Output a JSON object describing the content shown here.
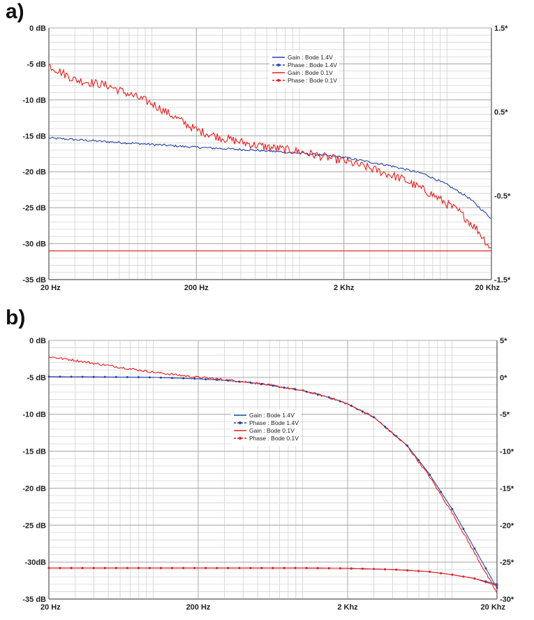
{
  "chart_data": [
    {
      "panel_label": "a)",
      "type": "line",
      "xscale": "log",
      "xlim": [
        20,
        20000
      ],
      "x_ticks": [
        {
          "value": 20,
          "label": "20 Hz"
        },
        {
          "value": 200,
          "label": "200 Hz"
        },
        {
          "value": 2000,
          "label": "2 Khz"
        },
        {
          "value": 20000,
          "label": "20 Khz"
        }
      ],
      "ylim": [
        -35,
        0
      ],
      "y_ticks": [
        {
          "value": 0,
          "label": "0 dB"
        },
        {
          "value": -5,
          "label": "-5 dB"
        },
        {
          "value": -10,
          "label": "-10 dB"
        },
        {
          "value": -15,
          "label": "-15 dB"
        },
        {
          "value": -20,
          "label": "-20 dB"
        },
        {
          "value": -25,
          "label": "-25 dB"
        },
        {
          "value": -30,
          "label": "-30 dB"
        },
        {
          "value": -35,
          "label": "-35 dB"
        }
      ],
      "y2lim": [
        -1.5,
        1.5
      ],
      "y2_ticks": [
        {
          "value": 1.5,
          "label": "1.5*"
        },
        {
          "value": 0.5,
          "label": "0.5*"
        },
        {
          "value": -0.5,
          "label": "-0.5*"
        },
        {
          "value": -1.5,
          "label": "-1.5*"
        }
      ],
      "legend_position": "top-center",
      "series": [
        {
          "name": "Gain : Bode 1.4V",
          "color": "#2244aa",
          "style": "solid",
          "noise": 0.15,
          "x": [
            20,
            40,
            100,
            200,
            500,
            1000,
            2000,
            4000,
            7000,
            10000,
            14000,
            20000
          ],
          "y": [
            -15.3,
            -15.7,
            -16.2,
            -16.6,
            -17.0,
            -17.4,
            -18.0,
            -19.1,
            -20.3,
            -21.8,
            -23.6,
            -26.5
          ]
        },
        {
          "name": "Phase : Bode 1.4V",
          "color": "#2244aa",
          "style": "dashed",
          "noise": 0,
          "x": [
            20,
            20000
          ],
          "y": [
            -31.0,
            -31.0
          ]
        },
        {
          "name": "Gain : Bode 0.1V",
          "color": "#ee1c1c",
          "style": "solid",
          "noise": 0.6,
          "x": [
            20,
            30,
            50,
            100,
            200,
            300,
            500,
            1000,
            2000,
            3000,
            5000,
            8000,
            12000,
            16000,
            20000
          ],
          "y": [
            -5.2,
            -7.2,
            -8.0,
            -10.5,
            -14.2,
            -15.3,
            -16.3,
            -17.2,
            -18.5,
            -19.5,
            -21.0,
            -23.2,
            -25.5,
            -28.0,
            -30.8
          ]
        },
        {
          "name": "Phase : Bode 0.1V",
          "color": "#ee1c1c",
          "style": "dashed",
          "noise": 0,
          "x": [
            20,
            20000
          ],
          "y": [
            -31.0,
            -31.0
          ]
        }
      ]
    },
    {
      "panel_label": "b)",
      "type": "line",
      "xscale": "log",
      "xlim": [
        20,
        20000
      ],
      "x_ticks": [
        {
          "value": 20,
          "label": "20 Hz"
        },
        {
          "value": 200,
          "label": "200 Hz"
        },
        {
          "value": 2000,
          "label": "2 Khz"
        },
        {
          "value": 20000,
          "label": "20 Khz"
        }
      ],
      "ylim": [
        -35,
        0
      ],
      "y_ticks": [
        {
          "value": 0,
          "label": "0 dB"
        },
        {
          "value": -5,
          "label": "-5 dB"
        },
        {
          "value": -10,
          "label": "-10 dB"
        },
        {
          "value": -15,
          "label": "-15 dB"
        },
        {
          "value": -20,
          "label": "-20 dB"
        },
        {
          "value": -25,
          "label": "-25 dB"
        },
        {
          "value": -30,
          "label": "-30dB"
        },
        {
          "value": -35,
          "label": "-35 dB"
        }
      ],
      "y2lim": [
        -30,
        5
      ],
      "y2_ticks": [
        {
          "value": 5,
          "label": "5*"
        },
        {
          "value": 0,
          "label": "0*"
        },
        {
          "value": -5,
          "label": "-5*"
        },
        {
          "value": -10,
          "label": "-10*"
        },
        {
          "value": -15,
          "label": "-15*"
        },
        {
          "value": -20,
          "label": "-20*"
        },
        {
          "value": -25,
          "label": "-25*"
        },
        {
          "value": -30,
          "label": "-30*"
        }
      ],
      "legend_position": "center",
      "series": [
        {
          "name": "Gain : Bode 1.4V",
          "color": "#2244aa",
          "style": "solid",
          "noise": 0,
          "x": [
            20,
            50,
            100,
            200,
            300,
            500,
            1000,
            1500,
            2000,
            3000,
            5000,
            7000,
            10000,
            14000,
            20000
          ],
          "y": [
            -4.9,
            -4.95,
            -5.0,
            -5.2,
            -5.4,
            -5.8,
            -6.8,
            -7.7,
            -8.6,
            -10.4,
            -14.2,
            -18.0,
            -22.8,
            -28.0,
            -33.5
          ]
        },
        {
          "name": "Phase : Bode 1.4V",
          "color": "#2244aa",
          "style": "dashed",
          "noise": 0,
          "x": [
            20,
            100,
            500,
            1000,
            2000,
            4000,
            7000,
            10000,
            14000,
            20000
          ],
          "y": [
            -30.8,
            -30.8,
            -30.8,
            -30.8,
            -30.85,
            -31.0,
            -31.3,
            -31.7,
            -32.2,
            -33.0
          ]
        },
        {
          "name": "Gain : Bode 0.1V",
          "color": "#ee1c1c",
          "style": "solid",
          "noise": 0.15,
          "x": [
            20,
            30,
            50,
            100,
            200,
            300,
            500,
            1000,
            1500,
            2000,
            3000,
            5000,
            7000,
            10000,
            14000,
            20000
          ],
          "y": [
            -2.2,
            -2.7,
            -3.4,
            -4.3,
            -5.0,
            -5.3,
            -5.8,
            -6.8,
            -7.7,
            -8.6,
            -10.4,
            -14.3,
            -18.3,
            -23.3,
            -28.6,
            -34.2
          ]
        },
        {
          "name": "Phase : Bode 0.1V",
          "color": "#ee1c1c",
          "style": "dashed",
          "noise": 0,
          "x": [
            20,
            100,
            500,
            1000,
            2000,
            4000,
            7000,
            10000,
            14000,
            20000
          ],
          "y": [
            -30.8,
            -30.8,
            -30.8,
            -30.8,
            -30.85,
            -31.0,
            -31.3,
            -31.7,
            -32.2,
            -33.2
          ]
        }
      ]
    }
  ]
}
